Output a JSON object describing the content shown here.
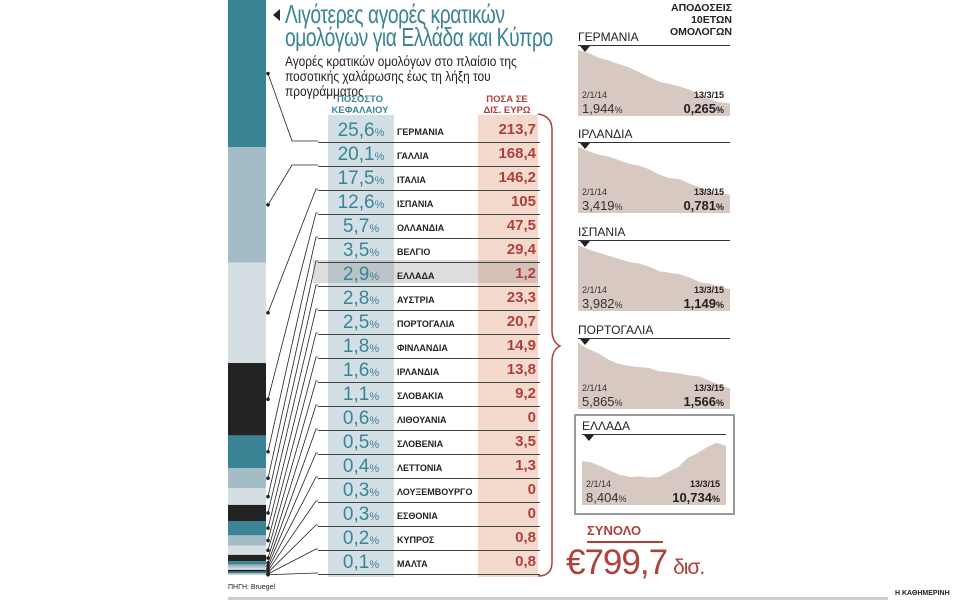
{
  "header": {
    "title": "Λιγότερες αγορές κρατικών ομολόγων για Ελλάδα και Κύπρο",
    "subtitle": "Αγορές κρατικών ομολόγων στο πλαίσιο της ποσοτικής χαλάρωσης έως τη λήξη του προγράμματος"
  },
  "columns": {
    "pct": "ΠΟΣΟΣΤΟ ΚΕΦΑΛΑΙΟΥ ΣΤΗΝ ΕΚΤ",
    "amt": "ΠΟΣΑ ΣΕ ΔΙΣ. ΕΥΡΩ",
    "pct_unit": "%"
  },
  "colors": {
    "teal": "#3b8496",
    "light": "#a4bcc5",
    "pale": "#d5dfe3",
    "black": "#222222",
    "red": "#b0403a",
    "spark_fill": "#d8c8c2"
  },
  "chart_data": [
    {
      "type": "table",
      "rows": [
        {
          "country": "ΓΕΡΜΑΝΙΑ",
          "pct": "25,6",
          "amount": "213,7"
        },
        {
          "country": "ΓΑΛΛΙΑ",
          "pct": "20,1",
          "amount": "168,4"
        },
        {
          "country": "ΙΤΑΛΙΑ",
          "pct": "17,5",
          "amount": "146,2"
        },
        {
          "country": "ΙΣΠΑΝΙΑ",
          "pct": "12,6",
          "amount": "105"
        },
        {
          "country": "ΟΛΛΑΝΔΙΑ",
          "pct": "5,7",
          "amount": "47,5"
        },
        {
          "country": "ΒΕΛΓΙΟ",
          "pct": "3,5",
          "amount": "29,4"
        },
        {
          "country": "ΕΛΛΑΔΑ",
          "pct": "2,9",
          "amount": "1,2"
        },
        {
          "country": "ΑΥΣΤΡΙΑ",
          "pct": "2,8",
          "amount": "23,3"
        },
        {
          "country": "ΠΟΡΤΟΓΑΛΙΑ",
          "pct": "2,5",
          "amount": "20,7"
        },
        {
          "country": "ΦΙΝΛΑΝΔΙΑ",
          "pct": "1,8",
          "amount": "14,9"
        },
        {
          "country": "ΙΡΛΑΝΔΙΑ",
          "pct": "1,6",
          "amount": "13,8"
        },
        {
          "country": "ΣΛΟΒΑΚΙΑ",
          "pct": "1,1",
          "amount": "9,2"
        },
        {
          "country": "ΛΙΘΟΥΑΝΙΑ",
          "pct": "0,6",
          "amount": "0"
        },
        {
          "country": "ΣΛΟΒΕΝΙΑ",
          "pct": "0,5",
          "amount": "3,5"
        },
        {
          "country": "ΛΕΤΤΟΝΙΑ",
          "pct": "0,4",
          "amount": "1,3"
        },
        {
          "country": "ΛΟΥΞΕΜΒΟΥΡΓΟ",
          "pct": "0,3",
          "amount": "0"
        },
        {
          "country": "ΕΣΘΟΝΙΑ",
          "pct": "0,3",
          "amount": "0"
        },
        {
          "country": "ΚΥΠΡΟΣ",
          "pct": "0,2",
          "amount": "0,8"
        },
        {
          "country": "ΜΑΛΤΑ",
          "pct": "0,1",
          "amount": "0,8"
        }
      ],
      "highlight": "ΕΛΛΑΔΑ"
    },
    {
      "type": "area",
      "title": "ΑΠΟΔΟΣΕΙΣ 10ΕΤΩΝ ΟΜΟΛΟΓΩΝ",
      "series": [
        {
          "name": "ΓΕΡΜΑΝΙΑ",
          "start_date": "2/1/14",
          "start": "1,944",
          "end_date": "13/3/15",
          "end": "0,265",
          "values": [
            1.94,
            1.85,
            1.7,
            1.62,
            1.5,
            1.4,
            1.25,
            1.1,
            0.95,
            0.88,
            0.8,
            0.7,
            0.55,
            0.4,
            0.3,
            0.27
          ]
        },
        {
          "name": "ΙΡΛΑΝΔΙΑ",
          "start_date": "2/1/14",
          "start": "3,419",
          "end_date": "13/3/15",
          "end": "0,781",
          "values": [
            3.42,
            3.2,
            3.0,
            2.9,
            2.7,
            2.5,
            2.4,
            2.2,
            1.9,
            1.7,
            1.65,
            1.4,
            1.2,
            1.05,
            0.9,
            0.78
          ]
        },
        {
          "name": "ΙΣΠΑΝΙΑ",
          "start_date": "2/1/14",
          "start": "3,982",
          "end_date": "13/3/15",
          "end": "1,149",
          "values": [
            3.98,
            3.7,
            3.5,
            3.3,
            3.1,
            2.9,
            2.8,
            2.6,
            2.3,
            2.2,
            2.1,
            1.9,
            1.6,
            1.5,
            1.3,
            1.15
          ]
        },
        {
          "name": "ΠΟΡΤΟΓΑΛΙΑ",
          "start_date": "2/1/14",
          "start": "5,865",
          "end_date": "13/3/15",
          "end": "1,566",
          "values": [
            5.87,
            5.3,
            4.9,
            4.3,
            3.9,
            3.7,
            3.6,
            3.5,
            3.2,
            3.1,
            3.0,
            2.8,
            2.7,
            2.3,
            1.9,
            1.57
          ]
        },
        {
          "name": "ΕΛΛΑΔΑ",
          "start_date": "2/1/14",
          "start": "8,404",
          "end_date": "13/3/15",
          "end": "10,734",
          "values": [
            8.4,
            8.2,
            7.6,
            6.9,
            6.3,
            6.0,
            6.1,
            5.9,
            6.0,
            6.8,
            7.5,
            8.9,
            9.6,
            10.5,
            11.2,
            10.73
          ]
        }
      ]
    }
  ],
  "total": {
    "label": "ΣΥΝΟΛΟ",
    "value": "€799,7",
    "unit": "δισ."
  },
  "source": "ΠΗΓΗ: Bruegel",
  "brand": "Η ΚΑΘΗΜΕΡΙΝΗ"
}
